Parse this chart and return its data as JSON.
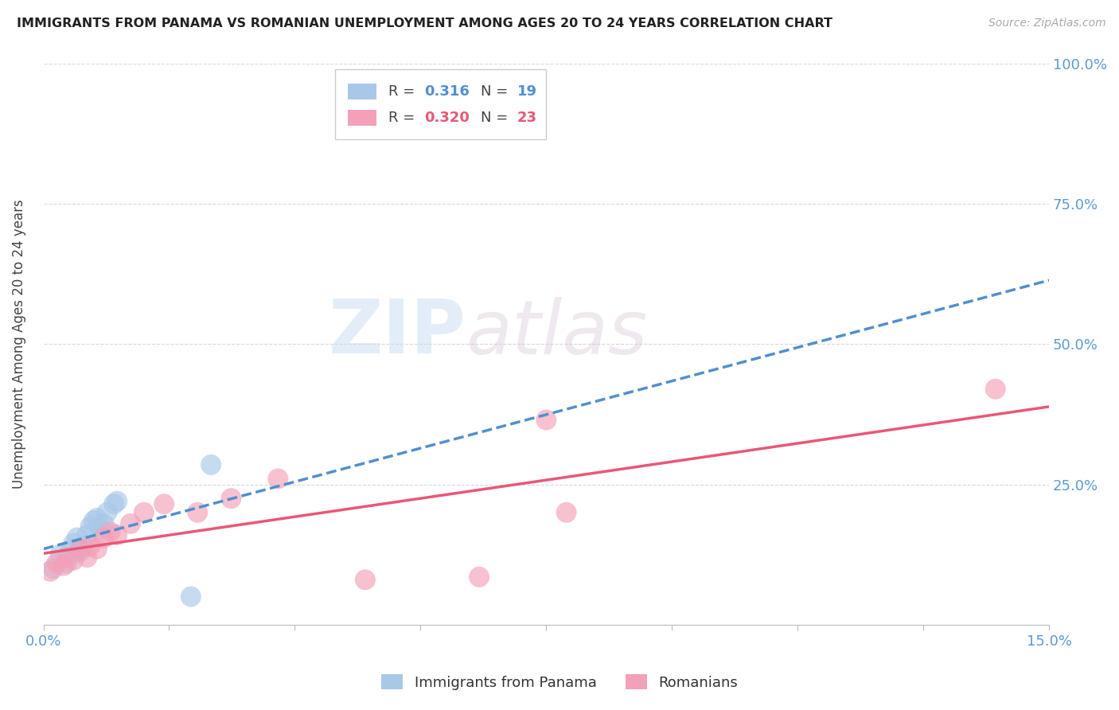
{
  "title": "IMMIGRANTS FROM PANAMA VS ROMANIAN UNEMPLOYMENT AMONG AGES 20 TO 24 YEARS CORRELATION CHART",
  "source": "Source: ZipAtlas.com",
  "ylabel": "Unemployment Among Ages 20 to 24 years",
  "xlim": [
    0.0,
    15.0
  ],
  "ylim": [
    0.0,
    100.0
  ],
  "yticks": [
    0,
    25,
    50,
    75,
    100
  ],
  "ytick_labels": [
    "",
    "25.0%",
    "50.0%",
    "75.0%",
    "100.0%"
  ],
  "blue_color": "#a8c8e8",
  "pink_color": "#f4a0b8",
  "blue_line_color": "#5090d0",
  "pink_line_color": "#e85878",
  "legend_r1_val": "0.316",
  "legend_n1_val": "19",
  "legend_r2_val": "0.320",
  "legend_n2_val": "23",
  "blue_scatter": [
    [
      0.15,
      10.0
    ],
    [
      0.25,
      12.5
    ],
    [
      0.35,
      11.0
    ],
    [
      0.4,
      13.0
    ],
    [
      0.45,
      14.5
    ],
    [
      0.5,
      15.5
    ],
    [
      0.55,
      13.0
    ],
    [
      0.6,
      14.0
    ],
    [
      0.65,
      16.0
    ],
    [
      0.7,
      17.5
    ],
    [
      0.75,
      18.5
    ],
    [
      0.8,
      19.0
    ],
    [
      0.85,
      17.0
    ],
    [
      0.9,
      18.0
    ],
    [
      0.95,
      20.0
    ],
    [
      1.05,
      21.5
    ],
    [
      1.1,
      22.0
    ],
    [
      2.5,
      28.5
    ],
    [
      2.2,
      5.0
    ]
  ],
  "pink_scatter": [
    [
      0.1,
      9.5
    ],
    [
      0.2,
      11.0
    ],
    [
      0.3,
      10.5
    ],
    [
      0.35,
      12.0
    ],
    [
      0.45,
      11.5
    ],
    [
      0.55,
      13.5
    ],
    [
      0.65,
      12.0
    ],
    [
      0.7,
      14.0
    ],
    [
      0.8,
      13.5
    ],
    [
      0.9,
      15.5
    ],
    [
      1.0,
      16.5
    ],
    [
      1.1,
      16.0
    ],
    [
      1.3,
      18.0
    ],
    [
      1.5,
      20.0
    ],
    [
      1.8,
      21.5
    ],
    [
      2.3,
      20.0
    ],
    [
      2.8,
      22.5
    ],
    [
      3.5,
      26.0
    ],
    [
      4.8,
      8.0
    ],
    [
      6.5,
      8.5
    ],
    [
      7.8,
      20.0
    ],
    [
      7.5,
      36.5
    ],
    [
      14.2,
      42.0
    ]
  ],
  "watermark_zip": "ZIP",
  "watermark_atlas": "atlas",
  "bg_color": "#ffffff",
  "grid_color": "#d8d8d8",
  "label_color": "#5b9bd5"
}
